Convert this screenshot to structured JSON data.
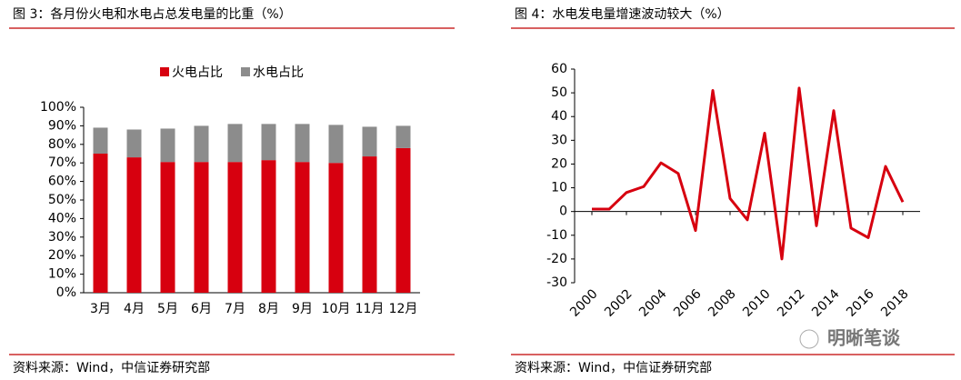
{
  "chart_data": [
    {
      "type": "bar",
      "stacked": true,
      "title": "图 3：各月份火电和水电占总发电量的比重（%）",
      "source": "资料来源：Wind，中信证券研究部",
      "categories": [
        "3月",
        "4月",
        "5月",
        "6月",
        "7月",
        "8月",
        "9月",
        "10月",
        "11月",
        "12月"
      ],
      "series": [
        {
          "name": "火电占比",
          "color": "#d7000f",
          "values": [
            75,
            73,
            70.5,
            70.5,
            70.5,
            71.5,
            70.5,
            70,
            73.5,
            78
          ]
        },
        {
          "name": "水电占比",
          "color": "#8c8c8c",
          "values": [
            14,
            15,
            18,
            19.5,
            20.5,
            19.5,
            20.5,
            20.5,
            16,
            12
          ]
        }
      ],
      "ylim": [
        0,
        100
      ],
      "yticks": [
        {
          "value": 0,
          "label": "0%"
        },
        {
          "value": 10,
          "label": "10%"
        },
        {
          "value": 20,
          "label": "20%"
        },
        {
          "value": 30,
          "label": "30%"
        },
        {
          "value": 40,
          "label": "40%"
        },
        {
          "value": 50,
          "label": "50%"
        },
        {
          "value": 60,
          "label": "60%"
        },
        {
          "value": 70,
          "label": "70%"
        },
        {
          "value": 80,
          "label": "80%"
        },
        {
          "value": 90,
          "label": "90%"
        },
        {
          "value": 100,
          "label": "100%"
        }
      ],
      "legend": "top"
    },
    {
      "type": "line",
      "title": "图 4：水电发电量增速波动较大（%）",
      "source": "资料来源：Wind，中信证券研究部",
      "x": [
        2000,
        2001,
        2002,
        2003,
        2004,
        2005,
        2006,
        2007,
        2008,
        2009,
        2010,
        2011,
        2012,
        2013,
        2014,
        2015,
        2016,
        2017,
        2018
      ],
      "series": [
        {
          "color": "#d7000f",
          "values": [
            1,
            1,
            8,
            10.5,
            20.5,
            16,
            -8,
            51,
            5.5,
            -3.5,
            33,
            -20,
            52,
            -6,
            42.5,
            -7,
            -11,
            19,
            4
          ]
        }
      ],
      "xlim": [
        1999,
        2019
      ],
      "xticks": [
        2000,
        2002,
        2004,
        2006,
        2008,
        2010,
        2012,
        2014,
        2016,
        2018
      ],
      "ylim": [
        -30,
        60
      ],
      "yticks": [
        -30,
        -20,
        -10,
        0,
        10,
        20,
        30,
        40,
        50,
        60
      ]
    }
  ],
  "watermark": "明晰笔谈"
}
